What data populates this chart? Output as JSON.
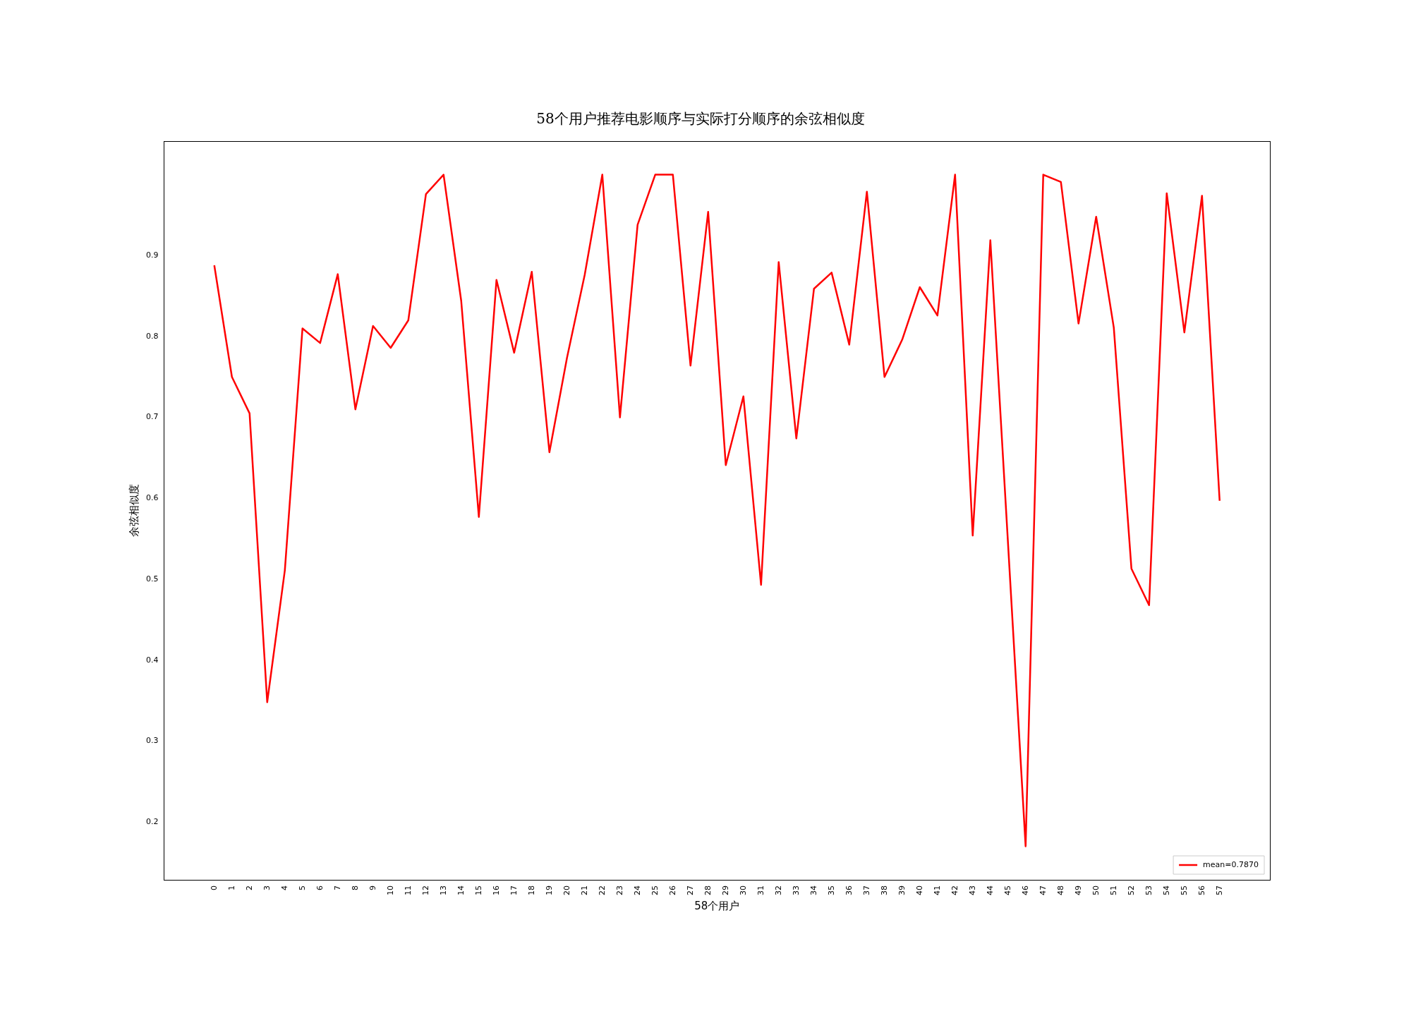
{
  "chart_data": {
    "type": "line",
    "title": "58个用户推荐电影顺序与实际打分顺序的余弦相似度",
    "xlabel": "58个用户",
    "ylabel": "余弦相似度",
    "x": [
      0,
      1,
      2,
      3,
      4,
      5,
      6,
      7,
      8,
      9,
      10,
      11,
      12,
      13,
      14,
      15,
      16,
      17,
      18,
      19,
      20,
      21,
      22,
      23,
      24,
      25,
      26,
      27,
      28,
      29,
      30,
      31,
      32,
      33,
      34,
      35,
      36,
      37,
      38,
      39,
      40,
      41,
      42,
      43,
      44,
      45,
      46,
      47,
      48,
      49,
      50,
      51,
      52,
      53,
      54,
      55,
      56,
      57
    ],
    "series": [
      {
        "name": "mean=0.7870",
        "color": "#ff0000",
        "values": [
          0.888,
          0.75,
          0.705,
          0.348,
          0.511,
          0.81,
          0.792,
          0.877,
          0.71,
          0.813,
          0.786,
          0.82,
          0.976,
          1.0,
          0.844,
          0.577,
          0.87,
          0.78,
          0.88,
          0.657,
          0.774,
          0.876,
          1.0,
          0.7,
          0.938,
          1.0,
          1.0,
          0.764,
          0.954,
          0.641,
          0.726,
          0.493,
          0.892,
          0.674,
          0.859,
          0.879,
          0.79,
          0.979,
          0.75,
          0.796,
          0.861,
          0.826,
          1.0,
          0.554,
          0.919,
          0.545,
          0.17,
          1.0,
          0.991,
          0.816,
          0.948,
          0.811,
          0.513,
          0.468,
          0.977,
          0.805,
          0.974,
          0.597
        ]
      }
    ],
    "xlim": [
      -2.85,
      59.85
    ],
    "ylim": [
      0.1285,
      1.0415
    ],
    "xticks": [
      0,
      1,
      2,
      3,
      4,
      5,
      6,
      7,
      8,
      9,
      10,
      11,
      12,
      13,
      14,
      15,
      16,
      17,
      18,
      19,
      20,
      21,
      22,
      23,
      24,
      25,
      26,
      27,
      28,
      29,
      30,
      31,
      32,
      33,
      34,
      35,
      36,
      37,
      38,
      39,
      40,
      41,
      42,
      43,
      44,
      45,
      46,
      47,
      48,
      49,
      50,
      51,
      52,
      53,
      54,
      55,
      56,
      57
    ],
    "yticks": [
      0.2,
      0.3,
      0.4,
      0.5,
      0.6,
      0.7,
      0.8,
      0.9
    ],
    "grid": false,
    "legend": "bottom right",
    "marker": "none",
    "line_style": "solid"
  }
}
